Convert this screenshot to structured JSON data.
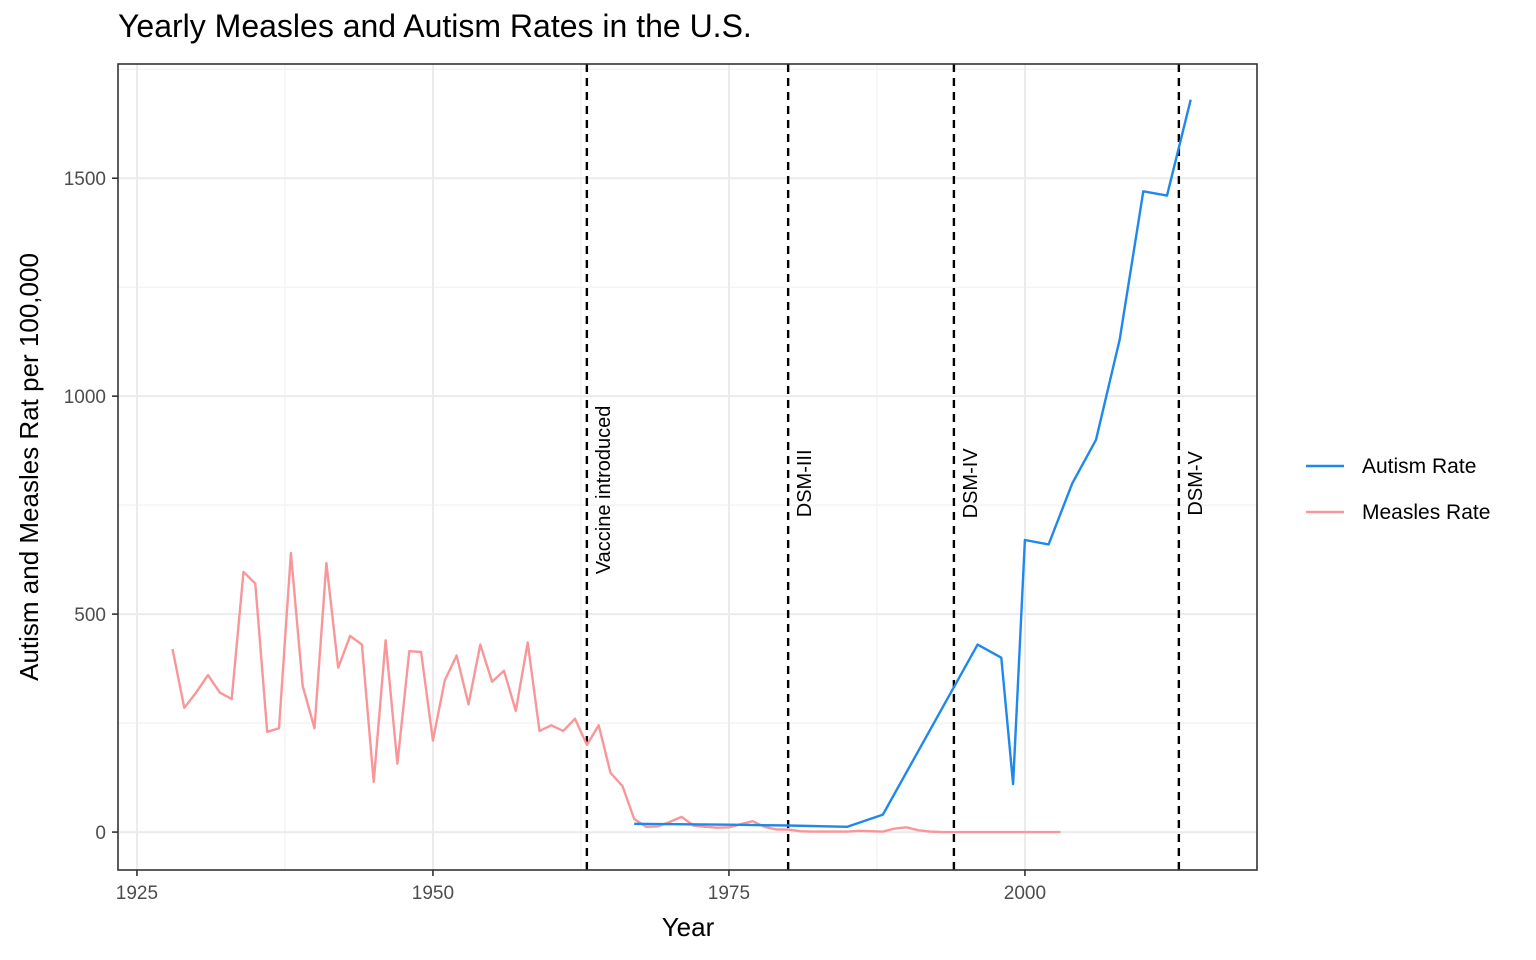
{
  "chart_data": {
    "type": "line",
    "title": "Yearly Measles and Autism Rates in the U.S.",
    "xlabel": "Year",
    "ylabel": "Autism and Measles Rat per 100,000",
    "xlim": [
      1923.4,
      2019.6
    ],
    "ylim": [
      -87,
      1762
    ],
    "x_ticks": [
      1925,
      1950,
      1975,
      2000
    ],
    "y_ticks": [
      0,
      500,
      1000,
      1500
    ],
    "grid": true,
    "legend_position": "right",
    "series": [
      {
        "name": "Autism Rate",
        "color": "#1f88ee",
        "x": [
          1967,
          1975,
          1980,
          1985,
          1988,
          1996,
          1998,
          1999,
          2000,
          2002,
          2004,
          2006,
          2008,
          2010,
          2012,
          2014
        ],
        "y": [
          19,
          17,
          15,
          12,
          40,
          430,
          400,
          110,
          670,
          660,
          800,
          900,
          1130,
          1470,
          1460,
          1680
        ]
      },
      {
        "name": "Measles Rate",
        "color": "#f8979a",
        "x": [
          1928,
          1929,
          1930,
          1931,
          1932,
          1933,
          1934,
          1935,
          1936,
          1937,
          1938,
          1939,
          1940,
          1941,
          1942,
          1943,
          1944,
          1945,
          1946,
          1947,
          1948,
          1949,
          1950,
          1951,
          1952,
          1953,
          1954,
          1955,
          1956,
          1957,
          1958,
          1959,
          1960,
          1961,
          1962,
          1963,
          1964,
          1965,
          1966,
          1967,
          1968,
          1969,
          1970,
          1971,
          1972,
          1973,
          1974,
          1975,
          1976,
          1977,
          1978,
          1979,
          1980,
          1981,
          1982,
          1983,
          1984,
          1985,
          1986,
          1987,
          1988,
          1989,
          1990,
          1991,
          1992,
          1993,
          1994,
          1995,
          1996,
          1997,
          1998,
          1999,
          2000,
          2001,
          2002,
          2003
        ],
        "y": [
          420,
          285,
          320,
          360,
          320,
          305,
          597,
          570,
          230,
          238,
          640,
          335,
          238,
          617,
          377,
          450,
          430,
          115,
          440,
          157,
          415,
          413,
          210,
          348,
          405,
          293,
          430,
          345,
          370,
          278,
          435,
          232,
          245,
          232,
          260,
          200,
          245,
          136,
          106,
          30,
          12,
          13,
          23,
          35,
          15,
          12,
          10,
          11,
          18,
          25,
          12,
          6,
          6,
          2,
          1,
          1,
          1,
          1,
          3,
          2,
          1,
          8,
          11,
          4,
          1,
          0,
          0,
          0,
          0,
          0,
          0,
          0,
          0,
          0,
          0,
          0
        ]
      }
    ],
    "annotations": [
      {
        "x": 1963,
        "label": "Vaccine introduced",
        "label_y": 785
      },
      {
        "x": 1980,
        "label": "DSM-III",
        "label_y": 800
      },
      {
        "x": 1994,
        "label": "DSM-IV",
        "label_y": 800
      },
      {
        "x": 2013,
        "label": "DSM-V",
        "label_y": 800
      }
    ]
  }
}
